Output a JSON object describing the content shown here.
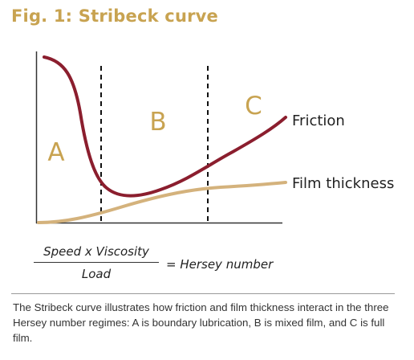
{
  "title": "Fig. 1: Stribeck curve",
  "diagram": {
    "regions": [
      "A",
      "B",
      "C"
    ],
    "curve_labels": {
      "friction": "Friction",
      "film": "Film thickness"
    },
    "colors": {
      "friction": "#8b1e2e",
      "film": "#d4b27c",
      "region_letters": "#c8a351",
      "axes": "#333333"
    }
  },
  "formula": {
    "numerator": "Speed x Viscosity",
    "denominator": "Load",
    "result": "= Hersey number"
  },
  "caption": "The Stribeck curve illustrates how friction and film thickness interact in the three Hersey number regimes: A is boundary lubrication, B is mixed film, and C is full film."
}
